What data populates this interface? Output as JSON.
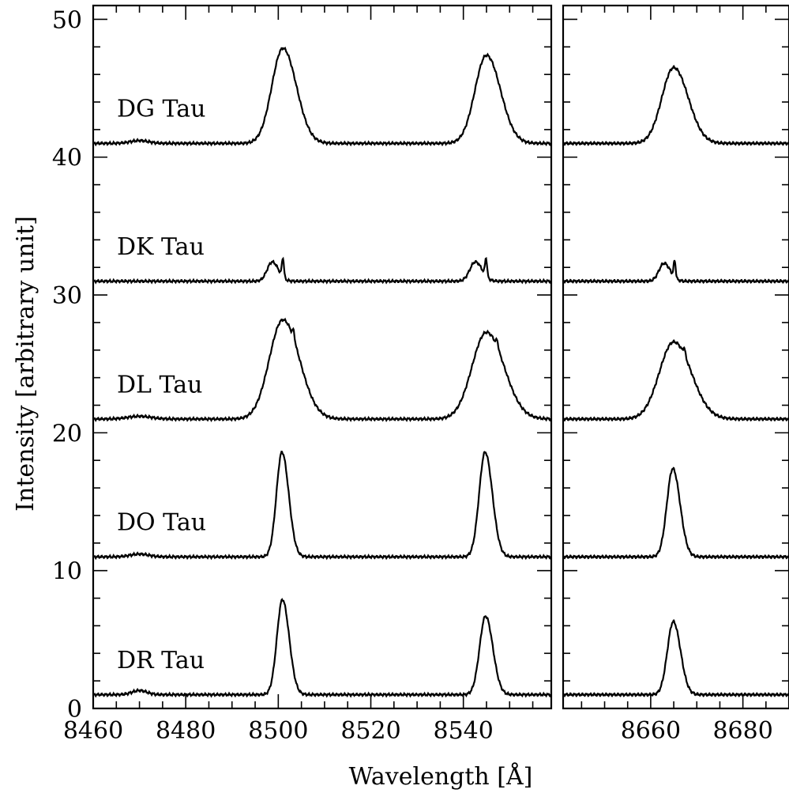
{
  "chart_data": {
    "type": "line",
    "xlabel": "Wavelength [Å]",
    "ylabel": "Intensity [arbitrary unit]",
    "ylim": [
      0,
      51
    ],
    "yticks": [
      0,
      10,
      20,
      30,
      40,
      50
    ],
    "panels": [
      {
        "id": "left",
        "xlim": [
          8460,
          8559
        ],
        "xticks": [
          8460,
          8480,
          8500,
          8520,
          8540
        ]
      },
      {
        "id": "right",
        "xlim": [
          8641,
          8690
        ],
        "xticks": [
          8660,
          8680
        ]
      }
    ],
    "series": [
      {
        "name": "DG Tau",
        "baseline": 41,
        "lines": [
          {
            "center": 8501.0,
            "peak": 47.9,
            "width": 2.6,
            "narrow": 0
          },
          {
            "center": 8545.0,
            "peak": 47.4,
            "width": 2.7,
            "narrow": 0
          },
          {
            "center": 8665.0,
            "peak": 46.5,
            "width": 2.8,
            "narrow": 0
          }
        ],
        "bumps": [
          {
            "center": 8470,
            "height": 0.2,
            "width": 2.0
          }
        ]
      },
      {
        "name": "DK Tau",
        "baseline": 31,
        "lines": [
          {
            "center": 8498.7,
            "peak": 32.4,
            "width": 1.2,
            "narrow": 1.4
          },
          {
            "center": 8542.6,
            "peak": 32.4,
            "width": 1.3,
            "narrow": 1.3
          },
          {
            "center": 8662.9,
            "peak": 32.3,
            "width": 1.2,
            "narrow": 1.2
          }
        ],
        "bumps": []
      },
      {
        "name": "DL Tau",
        "baseline": 21,
        "lines": [
          {
            "center": 8501.0,
            "peak": 28.2,
            "width": 3.2,
            "narrow": 0.6
          },
          {
            "center": 8545.0,
            "peak": 27.3,
            "width": 3.4,
            "narrow": 0.5
          },
          {
            "center": 8665.0,
            "peak": 26.6,
            "width": 3.4,
            "narrow": 0.5
          }
        ],
        "bumps": [
          {
            "center": 8470,
            "height": 0.2,
            "width": 2.5
          }
        ]
      },
      {
        "name": "DO Tau",
        "baseline": 11,
        "lines": [
          {
            "center": 8500.8,
            "peak": 18.6,
            "width": 1.3,
            "narrow": 0
          },
          {
            "center": 8544.7,
            "peak": 18.6,
            "width": 1.4,
            "narrow": 0
          },
          {
            "center": 8664.8,
            "peak": 17.4,
            "width": 1.4,
            "narrow": 0
          }
        ],
        "bumps": [
          {
            "center": 8470,
            "height": 0.2,
            "width": 2.0
          }
        ]
      },
      {
        "name": "DR Tau",
        "baseline": 1,
        "lines": [
          {
            "center": 8500.9,
            "peak": 7.9,
            "width": 1.3,
            "narrow": 0
          },
          {
            "center": 8544.8,
            "peak": 6.7,
            "width": 1.4,
            "narrow": 0
          },
          {
            "center": 8664.9,
            "peak": 6.3,
            "width": 1.4,
            "narrow": 0
          }
        ],
        "bumps": [
          {
            "center": 8470,
            "height": 0.3,
            "width": 1.6
          }
        ]
      }
    ]
  }
}
